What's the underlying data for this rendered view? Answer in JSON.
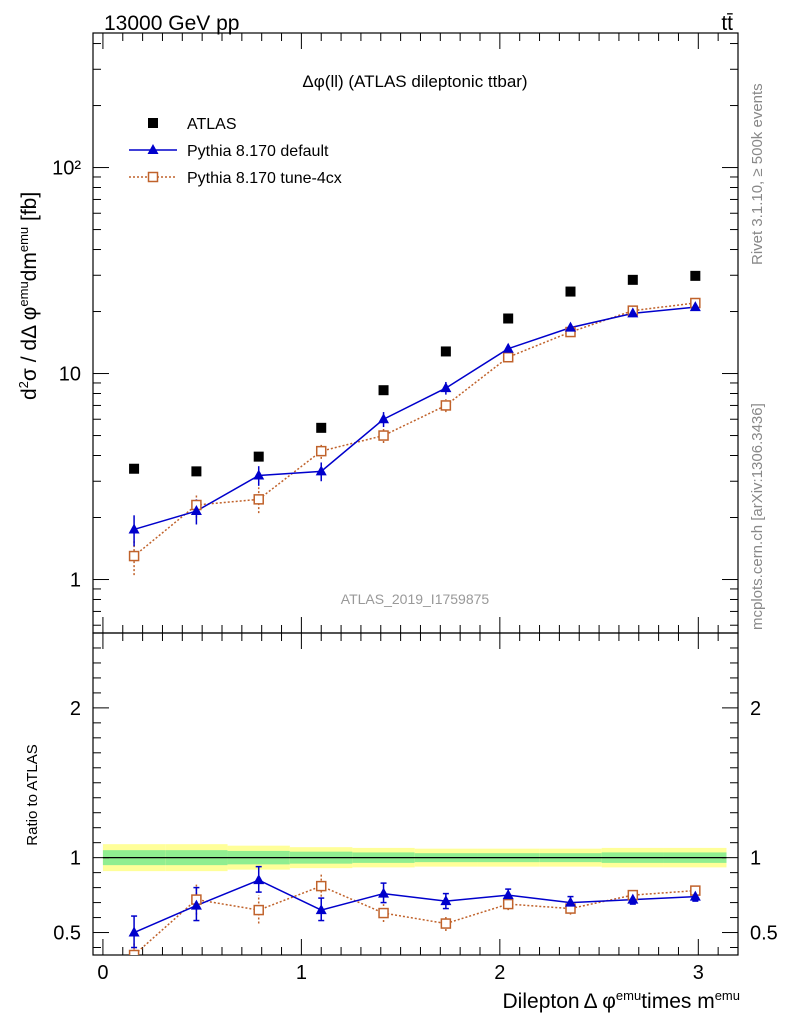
{
  "header": {
    "left": "13000 GeV pp",
    "right": "tt̄"
  },
  "side_labels": {
    "rivet": "Rivet 3.1.10, ≥ 500k events",
    "mcplots": "mcplots.cern.ch [arXiv:1306.3436]"
  },
  "colors": {
    "atlas": "#000000",
    "pythia_default": "#0000cc",
    "pythia_tune": "#c0622b",
    "band_inner": "#90ee90",
    "band_outer": "#ffff99"
  },
  "chart_data": [
    {
      "type": "scatter",
      "title": "Δφ(ll) (ATLAS dileptonic ttbar)",
      "watermark": "ATLAS_2019_I1759875",
      "ylabel": "d²σ / dΔ φ^emu dm^emu [fb]",
      "yscale": "log",
      "ylim": [
        0.55,
        450
      ],
      "xlim": [
        -0.05,
        3.2
      ],
      "ytick_labels": [
        "1",
        "10",
        "10²"
      ],
      "legend_position": "top-left",
      "x": [
        0.157,
        0.471,
        0.785,
        1.1,
        1.414,
        1.728,
        2.042,
        2.356,
        2.67,
        2.985
      ],
      "series": [
        {
          "name": "ATLAS",
          "marker": "square",
          "values": [
            3.45,
            3.35,
            3.95,
            5.45,
            8.3,
            12.8,
            18.5,
            25.0,
            28.5,
            29.8
          ]
        },
        {
          "name": "Pythia 8.170 default",
          "marker": "triangle",
          "values": [
            1.75,
            2.15,
            3.2,
            3.35,
            6.0,
            8.5,
            13.2,
            16.7,
            19.6,
            21.0
          ],
          "err_low": [
            0.3,
            0.3,
            0.35,
            0.35,
            0.5,
            0.6,
            0.7,
            0.8,
            0.8,
            0.8
          ],
          "err_high": [
            0.3,
            0.3,
            0.35,
            0.35,
            0.5,
            0.6,
            0.7,
            0.8,
            0.8,
            0.8
          ]
        },
        {
          "name": "Pythia 8.170 tune-4cx",
          "marker": "open-square",
          "values": [
            1.3,
            2.3,
            2.45,
            4.2,
            5.0,
            7.0,
            12.0,
            15.9,
            20.2,
            22.0
          ],
          "err_low": [
            0.25,
            0.3,
            0.35,
            0.35,
            0.4,
            0.5,
            0.6,
            0.7,
            0.8,
            0.8
          ],
          "err_high": [
            0.25,
            0.3,
            0.35,
            0.35,
            0.4,
            0.5,
            0.6,
            0.7,
            0.8,
            0.8
          ]
        }
      ]
    },
    {
      "type": "line",
      "ylabel": "Ratio to ATLAS",
      "xlabel": "Dilepton Δ φ^emu times m^emu",
      "xlim": [
        -0.05,
        3.2
      ],
      "ylim": [
        0.35,
        2.5
      ],
      "ytick_labels": [
        "0.5",
        "1",
        "2"
      ],
      "xtick_labels": [
        "0",
        "1",
        "2",
        "3"
      ],
      "x": [
        0.157,
        0.471,
        0.785,
        1.1,
        1.414,
        1.728,
        2.042,
        2.356,
        2.67,
        2.985
      ],
      "band_edges": [
        0.0,
        0.314,
        0.628,
        0.942,
        1.257,
        1.571,
        1.885,
        2.199,
        2.513,
        2.827,
        3.142
      ],
      "band_inner": [
        [
          0.95,
          1.05
        ],
        [
          0.95,
          1.05
        ],
        [
          0.955,
          1.045
        ],
        [
          0.96,
          1.04
        ],
        [
          0.965,
          1.035
        ],
        [
          0.97,
          1.03
        ],
        [
          0.97,
          1.03
        ],
        [
          0.97,
          1.03
        ],
        [
          0.965,
          1.035
        ],
        [
          0.965,
          1.035
        ]
      ],
      "band_outer": [
        [
          0.91,
          1.09
        ],
        [
          0.91,
          1.09
        ],
        [
          0.92,
          1.08
        ],
        [
          0.93,
          1.07
        ],
        [
          0.935,
          1.065
        ],
        [
          0.94,
          1.06
        ],
        [
          0.94,
          1.06
        ],
        [
          0.94,
          1.06
        ],
        [
          0.935,
          1.065
        ],
        [
          0.935,
          1.065
        ]
      ],
      "series": [
        {
          "name": "Pythia 8.170 default",
          "values": [
            0.5,
            0.68,
            0.85,
            0.65,
            0.76,
            0.71,
            0.75,
            0.7,
            0.72,
            0.74
          ],
          "err_low": [
            0.1,
            0.1,
            0.08,
            0.07,
            0.06,
            0.05,
            0.04,
            0.04,
            0.03,
            0.03
          ],
          "err_high": [
            0.11,
            0.12,
            0.09,
            0.08,
            0.07,
            0.05,
            0.04,
            0.04,
            0.03,
            0.03
          ]
        },
        {
          "name": "Pythia 8.170 tune-4cx",
          "values": [
            0.35,
            0.72,
            0.65,
            0.81,
            0.63,
            0.56,
            0.69,
            0.66,
            0.75,
            0.78
          ],
          "err_low": [
            0.07,
            0.1,
            0.09,
            0.07,
            0.06,
            0.05,
            0.04,
            0.04,
            0.03,
            0.03
          ],
          "err_high": [
            0.08,
            0.11,
            0.1,
            0.08,
            0.06,
            0.05,
            0.04,
            0.04,
            0.03,
            0.03
          ]
        }
      ]
    }
  ]
}
